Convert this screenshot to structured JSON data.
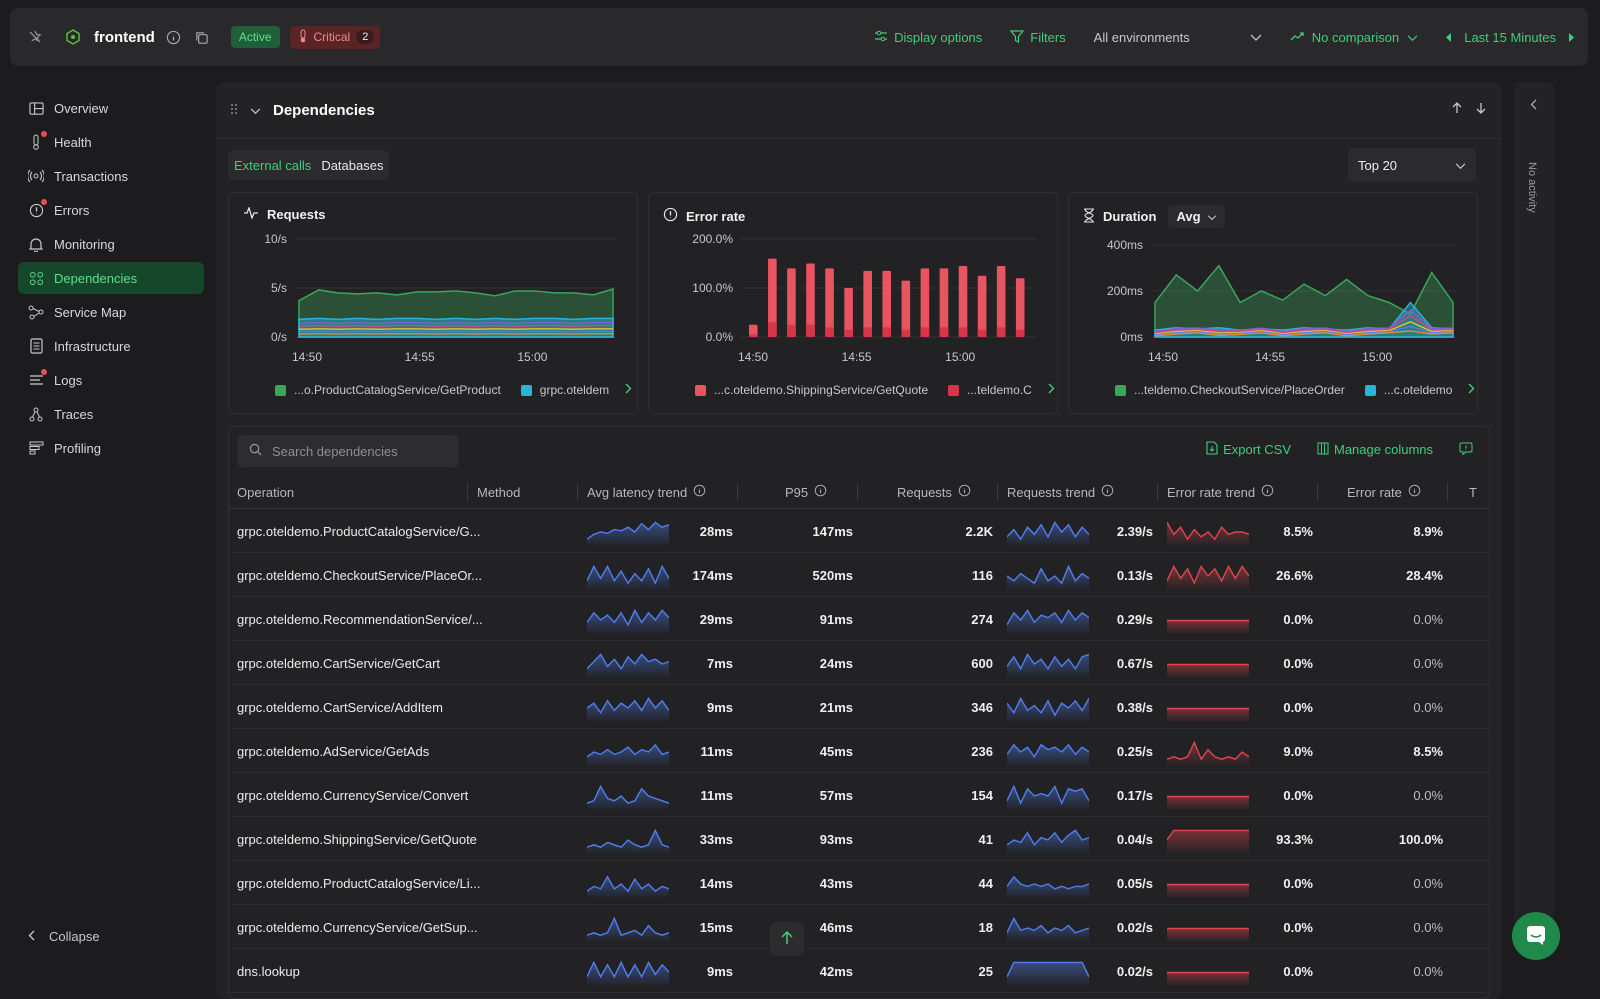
{
  "topbar": {
    "service_name": "frontend",
    "status_badge": "Active",
    "critical_label": "Critical",
    "critical_count": "2",
    "display_options": "Display options",
    "filters": "Filters",
    "environment": "All environments",
    "comparison": "No comparison",
    "time_range": "Last 15 Minutes"
  },
  "sidebar": {
    "items": [
      {
        "label": "Overview",
        "icon": "overview-icon"
      },
      {
        "label": "Health",
        "icon": "thermometer-icon",
        "alert": true
      },
      {
        "label": "Transactions",
        "icon": "transactions-icon"
      },
      {
        "label": "Errors",
        "icon": "error-icon",
        "alert": true
      },
      {
        "label": "Monitoring",
        "icon": "bell-icon"
      },
      {
        "label": "Dependencies",
        "icon": "dependencies-icon",
        "active": true
      },
      {
        "label": "Service Map",
        "icon": "service-map-icon"
      },
      {
        "label": "Infrastructure",
        "icon": "infrastructure-icon"
      },
      {
        "label": "Logs",
        "icon": "logs-icon",
        "alert": true
      },
      {
        "label": "Traces",
        "icon": "traces-icon"
      },
      {
        "label": "Profiling",
        "icon": "profiling-icon"
      }
    ],
    "collapse_label": "Collapse"
  },
  "right_rail": {
    "label": "No activity"
  },
  "panel": {
    "title": "Dependencies",
    "tabs": [
      "External calls",
      "Databases"
    ],
    "top_select": "Top 20"
  },
  "charts": {
    "requests": {
      "title": "Requests",
      "legend": [
        "...o.ProductCatalogService/GetProduct",
        "grpc.oteldem"
      ]
    },
    "error_rate": {
      "title": "Error rate",
      "legend": [
        "...c.oteldemo.ShippingService/GetQuote",
        "...teldemo.C"
      ]
    },
    "duration": {
      "title": "Duration",
      "agg": "Avg",
      "legend": [
        "...teldemo.CheckoutService/PlaceOrder",
        "...c.oteldemo"
      ]
    }
  },
  "chart_data": [
    {
      "type": "area",
      "title": "Requests",
      "x_ticks": [
        "14:50",
        "14:55",
        "15:00"
      ],
      "y_ticks": [
        "0/s",
        "5/s",
        "10/s"
      ],
      "ylim": [
        0,
        10
      ],
      "series": [
        {
          "name": "...o.ProductCatalogService/GetProduct",
          "color": "#3ba55c",
          "values": [
            3.7,
            4.8,
            4.5,
            4.4,
            4.5,
            4.3,
            4.6,
            4.6,
            4.7,
            4.5,
            4.2,
            4.7,
            4.7,
            4.5,
            4.5,
            4.3,
            4.9
          ]
        },
        {
          "name": "grpc.oteldem",
          "color": "#2bb3d9",
          "values": [
            1.8,
            1.9,
            1.8,
            1.9,
            1.8,
            1.9,
            1.9,
            1.8,
            1.9,
            1.8,
            1.9,
            1.8,
            1.9,
            1.9,
            1.8,
            1.9,
            1.9
          ]
        }
      ]
    },
    {
      "type": "bar",
      "title": "Error rate",
      "x_ticks": [
        "14:50",
        "14:55",
        "15:00"
      ],
      "y_ticks": [
        "0.0%",
        "100.0%",
        "200.0%"
      ],
      "ylim": [
        0,
        200
      ],
      "series": [
        {
          "name": "...c.oteldemo.ShippingService/GetQuote",
          "color": "#e85560",
          "values": [
            25,
            160,
            140,
            150,
            140,
            100,
            135,
            135,
            115,
            140,
            140,
            145,
            125,
            145,
            120
          ]
        },
        {
          "name": "...teldemo.C",
          "color": "#d9354a",
          "values": [
            5,
            30,
            25,
            25,
            20,
            15,
            20,
            20,
            15,
            20,
            20,
            20,
            15,
            20,
            15
          ]
        }
      ]
    },
    {
      "type": "area",
      "title": "Duration",
      "x_ticks": [
        "14:50",
        "14:55",
        "15:00"
      ],
      "y_ticks": [
        "0ms",
        "200ms",
        "400ms"
      ],
      "ylim": [
        0,
        400
      ],
      "series": [
        {
          "name": "...teldemo.CheckoutService/PlaceOrder",
          "color": "#3ba55c",
          "values": [
            150,
            270,
            200,
            310,
            150,
            200,
            160,
            230,
            180,
            250,
            180,
            150,
            100,
            280,
            150
          ]
        },
        {
          "name": "...c.oteldemo",
          "color": "#2bb3d9",
          "values": [
            30,
            40,
            35,
            40,
            30,
            35,
            30,
            40,
            35,
            30,
            40,
            35,
            150,
            40,
            35
          ]
        }
      ]
    }
  ],
  "table": {
    "search_placeholder": "Search dependencies",
    "export_label": "Export CSV",
    "manage_columns_label": "Manage columns",
    "columns": [
      "Operation",
      "Method",
      "Avg latency trend",
      "P95",
      "Requests",
      "Requests trend",
      "Error rate trend",
      "Error rate",
      "T"
    ],
    "rows": [
      {
        "op": "grpc.oteldemo.ProductCatalogService/G...",
        "avg": "28ms",
        "p95": "147ms",
        "req": "2.2K",
        "rps": "2.39/s",
        "err_trend_val": "8.5%",
        "err": "8.9%",
        "lat": [
          0.2,
          0.4,
          0.5,
          0.45,
          0.6,
          0.55,
          0.7,
          0.5,
          0.85,
          0.6,
          0.9,
          0.7,
          0.8
        ],
        "rtr": [
          0.3,
          0.6,
          0.2,
          0.7,
          0.4,
          0.8,
          0.3,
          0.9,
          0.5,
          0.8,
          0.3,
          0.7,
          0.4
        ],
        "etr": [
          0.9,
          0.4,
          0.7,
          0.2,
          0.6,
          0.3,
          0.5,
          0.2,
          0.7,
          0.4,
          0.5,
          0.5,
          0.4
        ],
        "err_flat": false
      },
      {
        "op": "grpc.oteldemo.CheckoutService/PlaceOr...",
        "avg": "174ms",
        "p95": "520ms",
        "req": "116",
        "rps": "0.13/s",
        "err_trend_val": "26.6%",
        "err": "28.4%",
        "lat": [
          0.3,
          0.9,
          0.4,
          0.9,
          0.3,
          0.7,
          0.2,
          0.6,
          0.3,
          0.8,
          0.2,
          0.9,
          0.4
        ],
        "rtr": [
          0.5,
          0.3,
          0.6,
          0.4,
          0.2,
          0.8,
          0.3,
          0.5,
          0.2,
          0.9,
          0.3,
          0.6,
          0.4
        ],
        "etr": [
          0.3,
          0.9,
          0.4,
          0.8,
          0.2,
          0.9,
          0.5,
          0.8,
          0.3,
          0.9,
          0.4,
          0.9,
          0.5
        ],
        "err_flat": false
      },
      {
        "op": "grpc.oteldemo.RecommendationService/...",
        "avg": "29ms",
        "p95": "91ms",
        "req": "274",
        "rps": "0.29/s",
        "err_trend_val": "0.0%",
        "err": "0.0%",
        "lat": [
          0.4,
          0.8,
          0.5,
          0.7,
          0.4,
          0.8,
          0.3,
          0.9,
          0.4,
          0.8,
          0.5,
          0.9,
          0.6
        ],
        "rtr": [
          0.3,
          0.8,
          0.5,
          0.9,
          0.4,
          0.7,
          0.6,
          0.8,
          0.4,
          0.9,
          0.5,
          0.8,
          0.6
        ],
        "etr": [],
        "err_flat": true
      },
      {
        "op": "grpc.oteldemo.CartService/GetCart",
        "avg": "7ms",
        "p95": "24ms",
        "req": "600",
        "rps": "0.67/s",
        "err_trend_val": "0.0%",
        "err": "0.0%",
        "lat": [
          0.3,
          0.6,
          0.9,
          0.4,
          0.7,
          0.3,
          0.8,
          0.5,
          0.9,
          0.6,
          0.7,
          0.5,
          0.6
        ],
        "rtr": [
          0.4,
          0.8,
          0.3,
          0.9,
          0.5,
          0.7,
          0.3,
          0.8,
          0.4,
          0.7,
          0.3,
          0.8,
          0.9
        ],
        "etr": [],
        "err_flat": true
      },
      {
        "op": "grpc.oteldemo.CartService/AddItem",
        "avg": "9ms",
        "p95": "21ms",
        "req": "346",
        "rps": "0.38/s",
        "err_trend_val": "0.0%",
        "err": "0.0%",
        "lat": [
          0.5,
          0.7,
          0.3,
          0.8,
          0.4,
          0.7,
          0.5,
          0.8,
          0.4,
          0.9,
          0.5,
          0.8,
          0.4
        ],
        "rtr": [
          0.7,
          0.3,
          0.9,
          0.4,
          0.6,
          0.3,
          0.8,
          0.2,
          0.7,
          0.5,
          0.8,
          0.4,
          0.9
        ],
        "etr": [],
        "err_flat": true
      },
      {
        "op": "grpc.oteldemo.AdService/GetAds",
        "avg": "11ms",
        "p95": "45ms",
        "req": "236",
        "rps": "0.25/s",
        "err_trend_val": "9.0%",
        "err": "8.5%",
        "lat": [
          0.3,
          0.5,
          0.4,
          0.6,
          0.4,
          0.5,
          0.7,
          0.4,
          0.6,
          0.5,
          0.8,
          0.4,
          0.5
        ],
        "rtr": [
          0.4,
          0.8,
          0.5,
          0.7,
          0.3,
          0.8,
          0.6,
          0.7,
          0.5,
          0.8,
          0.4,
          0.7,
          0.5
        ],
        "etr": [
          0.2,
          0.3,
          0.2,
          0.3,
          0.9,
          0.2,
          0.6,
          0.3,
          0.2,
          0.3,
          0.2,
          0.5,
          0.3
        ],
        "err_flat": false
      },
      {
        "op": "grpc.oteldemo.CurrencyService/Convert",
        "avg": "11ms",
        "p95": "57ms",
        "req": "154",
        "rps": "0.17/s",
        "err_trend_val": "0.0%",
        "err": "0.0%",
        "lat": [
          0.2,
          0.3,
          0.9,
          0.4,
          0.3,
          0.5,
          0.2,
          0.3,
          0.8,
          0.5,
          0.4,
          0.3,
          0.2
        ],
        "rtr": [
          0.3,
          0.9,
          0.2,
          0.8,
          0.5,
          0.6,
          0.5,
          0.9,
          0.2,
          0.8,
          0.7,
          0.8,
          0.3
        ],
        "etr": [],
        "err_flat": true
      },
      {
        "op": "grpc.oteldemo.ShippingService/GetQuote",
        "avg": "33ms",
        "p95": "93ms",
        "req": "41",
        "rps": "0.04/s",
        "err_trend_val": "93.3%",
        "err": "100.0%",
        "lat": [
          0.2,
          0.3,
          0.2,
          0.4,
          0.3,
          0.2,
          0.5,
          0.3,
          0.2,
          0.3,
          0.9,
          0.3,
          0.2
        ],
        "rtr": [
          0.3,
          0.5,
          0.4,
          0.8,
          0.3,
          0.6,
          0.5,
          0.8,
          0.4,
          0.7,
          0.9,
          0.5,
          0.6
        ],
        "etr": [
          0.5,
          0.9,
          0.9,
          0.9,
          0.9,
          0.9,
          0.9,
          0.9,
          0.9,
          0.9,
          0.9,
          0.9,
          0.9
        ],
        "err_flat": false
      },
      {
        "op": "grpc.oteldemo.ProductCatalogService/Li...",
        "avg": "14ms",
        "p95": "43ms",
        "req": "44",
        "rps": "0.05/s",
        "err_trend_val": "0.0%",
        "err": "0.0%",
        "lat": [
          0.2,
          0.4,
          0.3,
          0.8,
          0.3,
          0.5,
          0.2,
          0.7,
          0.3,
          0.5,
          0.2,
          0.4,
          0.3
        ],
        "rtr": [
          0.4,
          0.8,
          0.5,
          0.4,
          0.5,
          0.4,
          0.5,
          0.3,
          0.4,
          0.3,
          0.4,
          0.4,
          0.5
        ],
        "etr": [],
        "err_flat": true
      },
      {
        "op": "grpc.oteldemo.CurrencyService/GetSup...",
        "avg": "15ms",
        "p95": "46ms",
        "req": "18",
        "rps": "0.02/s",
        "err_trend_val": "0.0%",
        "err": "0.0%",
        "lat": [
          0.2,
          0.3,
          0.2,
          0.3,
          0.9,
          0.2,
          0.3,
          0.4,
          0.2,
          0.6,
          0.3,
          0.2,
          0.3
        ],
        "rtr": [
          0.3,
          0.9,
          0.4,
          0.5,
          0.4,
          0.6,
          0.3,
          0.5,
          0.4,
          0.6,
          0.3,
          0.4,
          0.5
        ],
        "etr": [],
        "err_flat": true
      },
      {
        "op": "dns.lookup",
        "avg": "9ms",
        "p95": "42ms",
        "req": "25",
        "rps": "0.02/s",
        "err_trend_val": "0.0%",
        "err": "0.0%",
        "lat": [
          0.3,
          0.9,
          0.3,
          0.8,
          0.3,
          0.9,
          0.3,
          0.8,
          0.3,
          0.9,
          0.4,
          0.8,
          0.5
        ],
        "rtr": [
          0.3,
          0.9,
          0.9,
          0.9,
          0.9,
          0.9,
          0.9,
          0.9,
          0.9,
          0.9,
          0.9,
          0.9,
          0.3
        ],
        "etr": [],
        "err_flat": true
      }
    ]
  },
  "colors": {
    "accent": "#3fcf7a",
    "error": "#e85560",
    "trend_blue": "#4f7ff0",
    "trend_red": "#e0454f"
  }
}
